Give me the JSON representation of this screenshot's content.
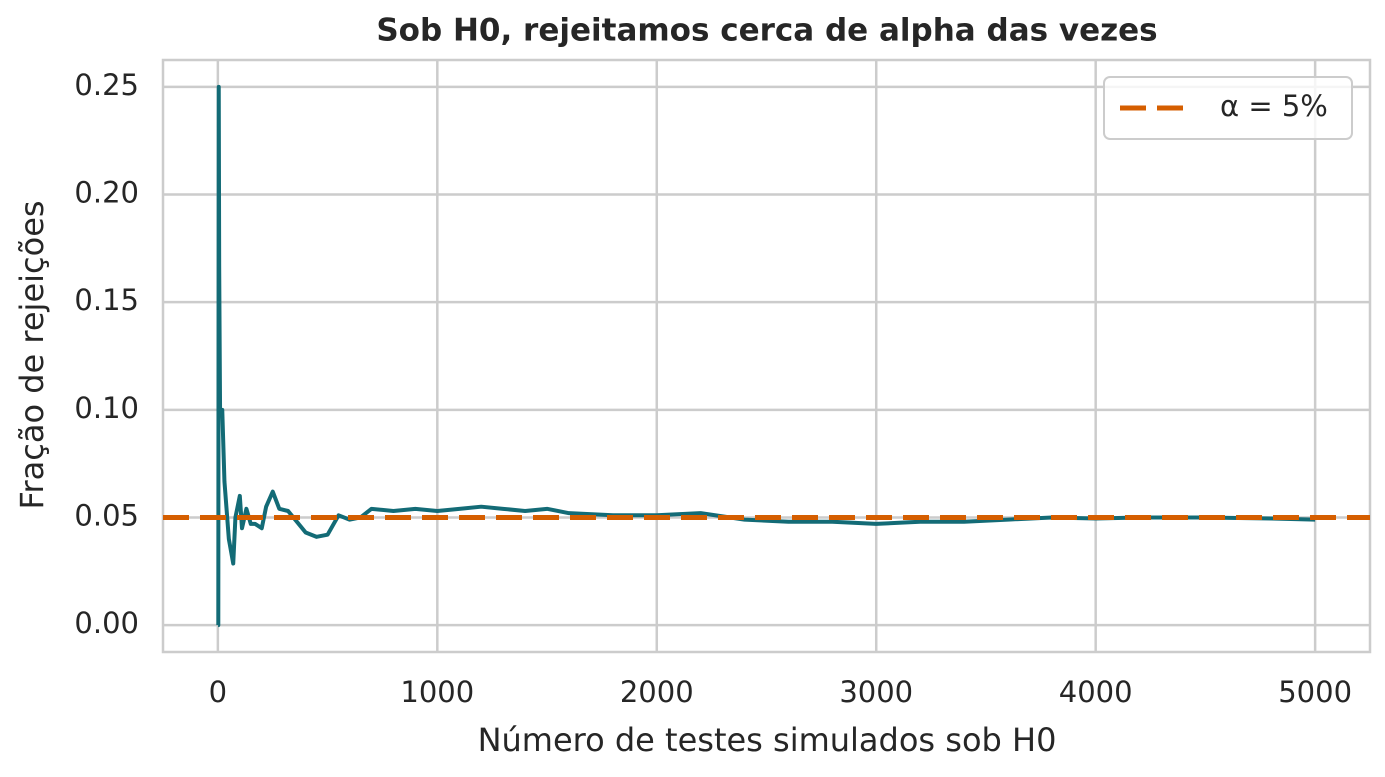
{
  "chart_data": {
    "type": "line",
    "title": "Sob H0, rejeitamos cerca de alpha das vezes",
    "x_label": "Número de testes simulados sob H0",
    "y_label": "Fração de rejeições",
    "x": [
      1,
      2,
      4,
      6,
      10,
      20,
      30,
      50,
      70,
      80,
      100,
      110,
      130,
      150,
      170,
      200,
      220,
      250,
      280,
      320,
      360,
      400,
      450,
      500,
      550,
      600,
      650,
      700,
      800,
      900,
      1000,
      1100,
      1200,
      1300,
      1400,
      1500,
      1600,
      1800,
      2000,
      2200,
      2400,
      2600,
      2800,
      3000,
      3200,
      3400,
      3600,
      3800,
      4000,
      4200,
      4500,
      4800,
      5000
    ],
    "series": [
      {
        "color": "#136b76",
        "values": [
          0,
          0,
          0.25,
          0.1667,
          0.1,
          0.1,
          0.0667,
          0.04,
          0.0286,
          0.05,
          0.06,
          0.045,
          0.054,
          0.047,
          0.047,
          0.045,
          0.055,
          0.062,
          0.054,
          0.053,
          0.048,
          0.043,
          0.041,
          0.042,
          0.051,
          0.049,
          0.05,
          0.054,
          0.053,
          0.054,
          0.053,
          0.054,
          0.055,
          0.054,
          0.053,
          0.054,
          0.052,
          0.051,
          0.051,
          0.052,
          0.049,
          0.048,
          0.048,
          0.047,
          0.048,
          0.048,
          0.049,
          0.05,
          0.0495,
          0.05,
          0.05,
          0.0495,
          0.049
        ]
      }
    ],
    "hlines": [
      {
        "name": "α = 5%",
        "value": 0.05,
        "color": "#d55e00",
        "style": "dashed"
      }
    ],
    "xlim": [
      -250,
      5250
    ],
    "ylim": [
      -0.0125,
      0.2625
    ],
    "xticks": [
      0,
      1000,
      2000,
      3000,
      4000,
      5000
    ],
    "yticks": [
      {
        "value": 0,
        "label": "0.00"
      },
      0.05,
      {
        "value": 0.1,
        "label": "0.10"
      },
      0.15,
      {
        "value": 0.2,
        "label": "0.20"
      },
      0.25
    ],
    "grid": true,
    "legend": "upper right"
  }
}
